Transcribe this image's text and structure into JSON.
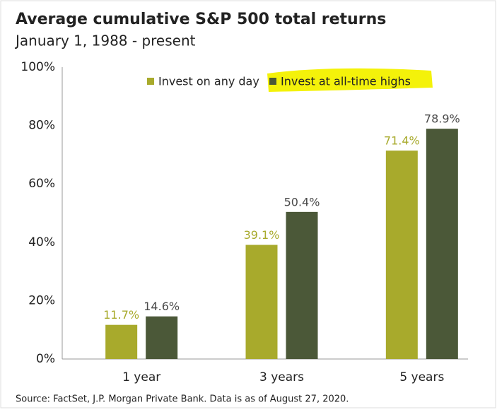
{
  "chart_data": {
    "type": "bar",
    "title": "Average cumulative S&P 500 total returns",
    "subtitle": "January 1, 1988 - present",
    "categories": [
      "1 year",
      "3 years",
      "5 years"
    ],
    "series": [
      {
        "name": "Invest on any day",
        "color": "#a8aa2c",
        "values": [
          11.7,
          39.1,
          71.4
        ],
        "value_labels": [
          "11.7%",
          "39.1%",
          "71.4%"
        ]
      },
      {
        "name": "Invest at all-time highs",
        "color": "#4b5838",
        "values": [
          14.6,
          50.4,
          78.9
        ],
        "value_labels": [
          "14.6%",
          "50.4%",
          "78.9%"
        ]
      }
    ],
    "ylim": [
      0,
      100
    ],
    "yticks": [
      {
        "value": 0,
        "label": "0%"
      },
      {
        "value": 20,
        "label": "20%"
      },
      {
        "value": 40,
        "label": "40%"
      },
      {
        "value": 60,
        "label": "60%"
      },
      {
        "value": 80,
        "label": "80%"
      },
      {
        "value": 100,
        "label": "100%"
      }
    ],
    "grid": false,
    "source": "Source: FactSet, J.P. Morgan Private Bank. Data is as of August 27, 2020."
  }
}
